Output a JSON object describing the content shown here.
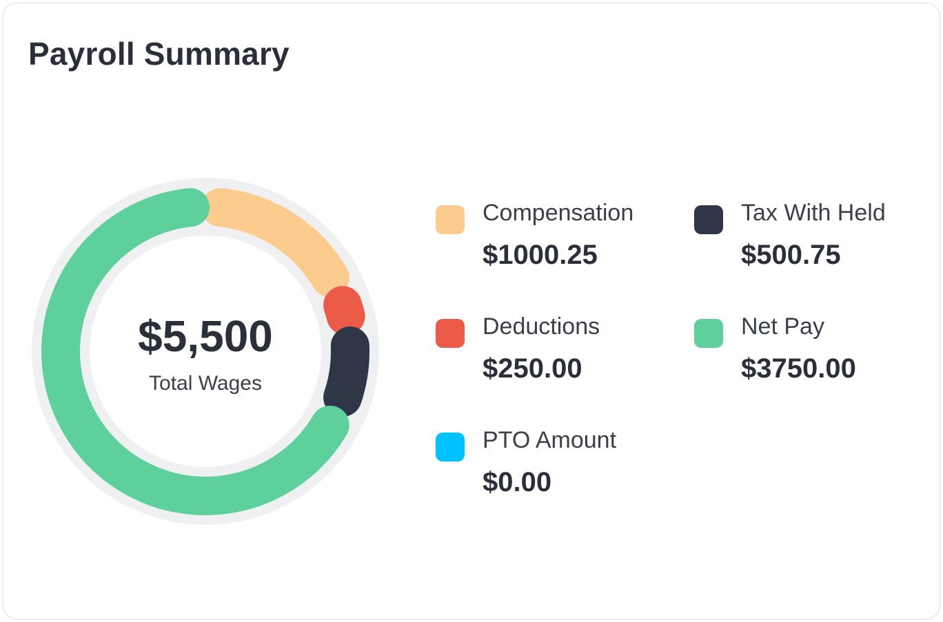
{
  "header": {
    "title": "Payroll Summary"
  },
  "center": {
    "total": "$5,500",
    "label": "Total Wages"
  },
  "colors": {
    "track": "#eff0f2",
    "compensation": "#fccc8f",
    "deductions": "#eb5b48",
    "tax_with_held": "#2e3648",
    "net_pay": "#5ed09c",
    "pto_amount": "#00c2ff"
  },
  "legend": [
    {
      "label": "Compensation",
      "value": "$1000.25",
      "color": "#fccc8f"
    },
    {
      "label": "Tax With Held",
      "value": "$500.75",
      "color": "#2e3648"
    },
    {
      "label": "Deductions",
      "value": "$250.00",
      "color": "#eb5b48"
    },
    {
      "label": "Net Pay",
      "value": "$3750.00",
      "color": "#5ed09c"
    },
    {
      "label": "PTO Amount",
      "value": "$0.00",
      "color": "#00c2ff"
    }
  ],
  "chart_data": {
    "type": "pie",
    "categories": [
      "Compensation",
      "Deductions",
      "Tax With Held",
      "Net Pay",
      "PTO Amount"
    ],
    "values": [
      1000.25,
      250.0,
      500.75,
      3750.0,
      0.0
    ],
    "colors": [
      "#fccc8f",
      "#eb5b48",
      "#2e3648",
      "#5ed09c",
      "#00c2ff"
    ],
    "legend": "right"
  }
}
